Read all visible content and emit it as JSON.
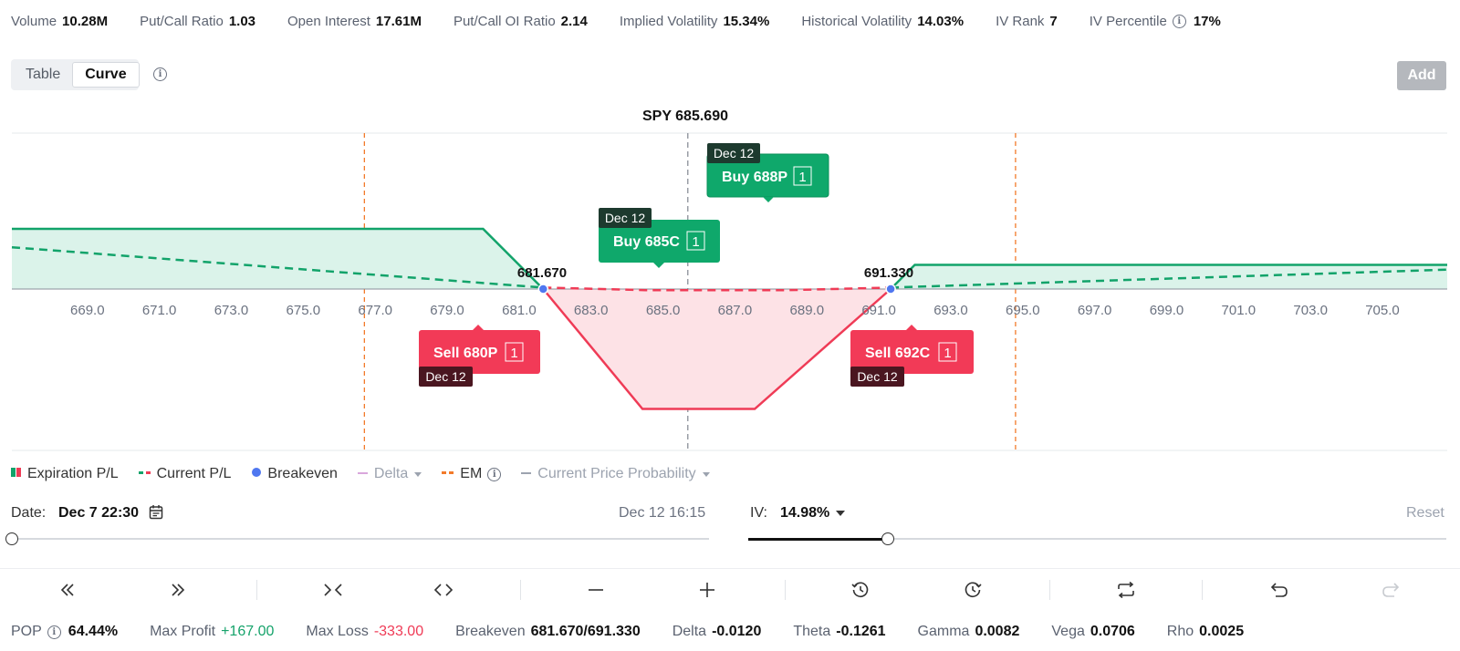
{
  "stats": [
    {
      "label": "Volume",
      "value": "10.28M"
    },
    {
      "label": "Put/Call Ratio",
      "value": "1.03"
    },
    {
      "label": "Open Interest",
      "value": "17.61M"
    },
    {
      "label": "Put/Call OI Ratio",
      "value": "2.14"
    },
    {
      "label": "Implied Volatility",
      "value": "15.34%"
    },
    {
      "label": "Historical Volatility",
      "value": "14.03%"
    },
    {
      "label": "IV Rank",
      "value": "7"
    },
    {
      "label": "IV Percentile",
      "value": "17%"
    }
  ],
  "view_toggle": {
    "table": "Table",
    "curve": "Curve",
    "active": "Curve"
  },
  "add_button": "Add",
  "chart": {
    "spot_label": "SPY 685.690",
    "spot_price": 685.69,
    "x_ticks": [
      "669.0",
      "671.0",
      "673.0",
      "675.0",
      "677.0",
      "679.0",
      "681.0",
      "683.0",
      "685.0",
      "687.0",
      "689.0",
      "691.0",
      "693.0",
      "695.0",
      "697.0",
      "699.0",
      "701.0",
      "703.0",
      "705.0"
    ],
    "x_range": [
      666.9,
      706.8
    ],
    "em_lines": [
      676.7,
      694.8
    ],
    "breakeven_low": "681.670",
    "breakeven_high": "691.330",
    "expiration_pl": [
      [
        666.9,
        167
      ],
      [
        680,
        167
      ],
      [
        681.67,
        0
      ],
      [
        684.43,
        -333
      ],
      [
        687.55,
        -333
      ],
      [
        691.33,
        0
      ],
      [
        692,
        67
      ],
      [
        706.8,
        67
      ]
    ],
    "current_pl": [
      [
        666.9,
        116
      ],
      [
        681.67,
        4
      ],
      [
        684.5,
        -3
      ],
      [
        688.5,
        -3
      ],
      [
        691.33,
        4
      ],
      [
        706.8,
        54
      ]
    ],
    "legs": [
      {
        "action": "Buy",
        "contract": "688P",
        "qty": "1",
        "expiry": "Dec 12",
        "color": "#0fa86b"
      },
      {
        "action": "Buy",
        "contract": "685C",
        "qty": "1",
        "expiry": "Dec 12",
        "color": "#0fa86b"
      },
      {
        "action": "Sell",
        "contract": "680P",
        "qty": "1",
        "expiry": "Dec 12",
        "color": "#f23a57"
      },
      {
        "action": "Sell",
        "contract": "692C",
        "qty": "1",
        "expiry": "Dec 12",
        "color": "#f23a57"
      }
    ],
    "colors": {
      "profit": "#12a36a",
      "loss": "#ef3b56",
      "profit_fill": "#dbf3ea",
      "loss_fill": "#fde2e6",
      "breakeven": "#4f77f0",
      "em": "#f27a2a"
    }
  },
  "legend": {
    "expiration_pl": "Expiration P/L",
    "current_pl": "Current P/L",
    "breakeven": "Breakeven",
    "delta": "Delta",
    "em": "EM",
    "current_price_probability": "Current Price Probability"
  },
  "controls": {
    "date_label": "Date:",
    "date_value": "Dec 7 22:30",
    "expiration_label": "Dec 12 16:15",
    "iv_label": "IV:",
    "iv_value": "14.98%",
    "iv_slider_fraction": 0.198,
    "reset": "Reset"
  },
  "toolbar_icons": [
    "double-chevron-left-icon",
    "double-chevron-right-icon",
    "collapse-icon",
    "expand-icon",
    "minus-icon",
    "plus-icon",
    "history-icon",
    "clock-forward-icon",
    "swap-icon",
    "undo-icon",
    "redo-icon"
  ],
  "bottom_stats": [
    {
      "label": "POP",
      "value": "64.44%",
      "info": true
    },
    {
      "label": "Max Profit",
      "value": "+167.00",
      "tone": "pos"
    },
    {
      "label": "Max Loss",
      "value": "-333.00",
      "tone": "neg"
    },
    {
      "label": "Breakeven",
      "value": "681.670/691.330"
    },
    {
      "label": "Delta",
      "value": "-0.0120"
    },
    {
      "label": "Theta",
      "value": "-0.1261"
    },
    {
      "label": "Gamma",
      "value": "0.0082"
    },
    {
      "label": "Vega",
      "value": "0.0706"
    },
    {
      "label": "Rho",
      "value": "0.0025"
    }
  ]
}
